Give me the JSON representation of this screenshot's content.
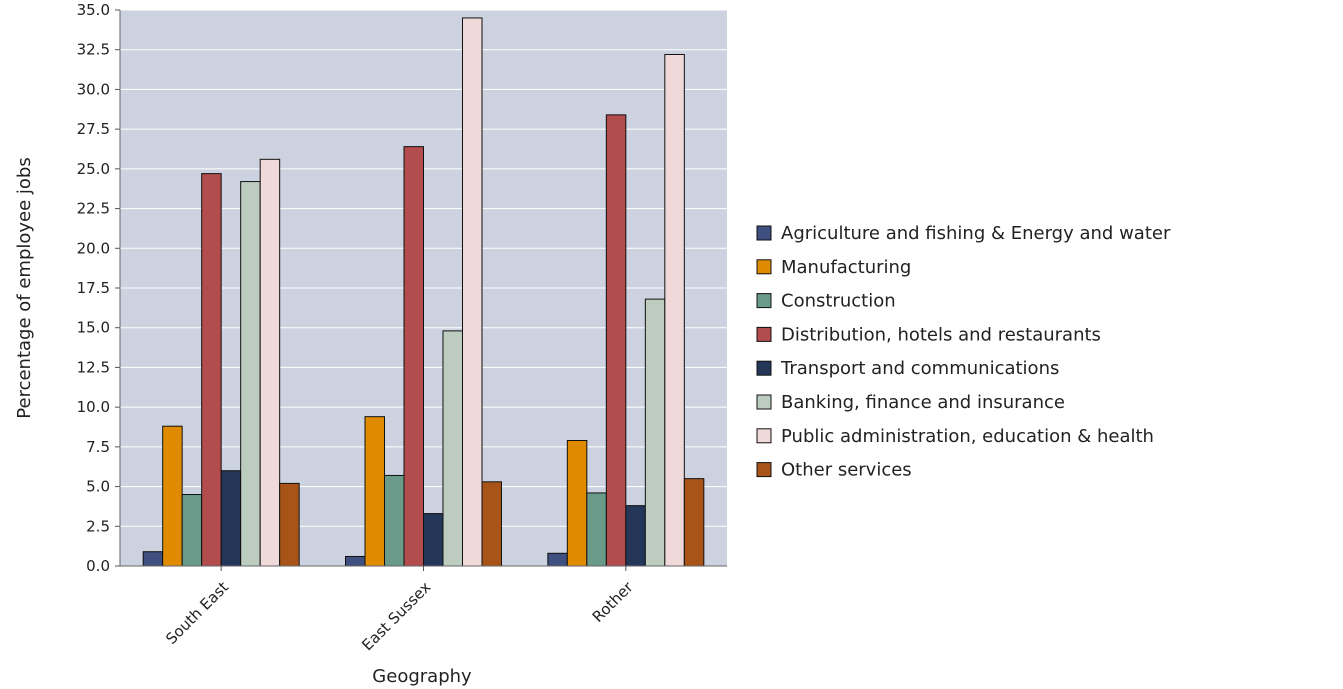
{
  "chart_data": {
    "type": "bar",
    "title": "",
    "xlabel": "Geography",
    "ylabel": "Percentage of employee jobs",
    "ylim": [
      0,
      35
    ],
    "yticks": [
      0.0,
      2.5,
      5.0,
      7.5,
      10.0,
      12.5,
      15.0,
      17.5,
      20.0,
      22.5,
      25.0,
      27.5,
      30.0,
      32.5,
      35.0
    ],
    "ytick_labels": [
      "0.0",
      "2.5",
      "5.0",
      "7.5",
      "10.0",
      "12.5",
      "15.0",
      "17.5",
      "20.0",
      "22.5",
      "25.0",
      "27.5",
      "30.0",
      "32.5",
      "35.0"
    ],
    "grid": true,
    "legend_position": "right",
    "categories": [
      "South East",
      "East Sussex",
      "Rother"
    ],
    "series": [
      {
        "name": "Agriculture and fishing & Energy and water",
        "color": "#3f4f7f",
        "values": [
          0.9,
          0.6,
          0.8
        ]
      },
      {
        "name": "Manufacturing",
        "color": "#e08a00",
        "values": [
          8.8,
          9.4,
          7.9
        ]
      },
      {
        "name": "Construction",
        "color": "#6a9a8a",
        "values": [
          4.5,
          5.7,
          4.6
        ]
      },
      {
        "name": "Distribution, hotels and restaurants",
        "color": "#b34c4c",
        "values": [
          24.7,
          26.4,
          28.4
        ]
      },
      {
        "name": "Transport and communications",
        "color": "#243759",
        "values": [
          6.0,
          3.3,
          3.8
        ]
      },
      {
        "name": "Banking, finance and insurance",
        "color": "#bccdc0",
        "values": [
          24.2,
          14.8,
          16.8
        ]
      },
      {
        "name": "Public administration, education & health",
        "color": "#efd9d9",
        "values": [
          25.6,
          34.5,
          32.2
        ]
      },
      {
        "name": "Other services",
        "color": "#a85418",
        "values": [
          5.2,
          5.3,
          5.5
        ]
      }
    ]
  }
}
